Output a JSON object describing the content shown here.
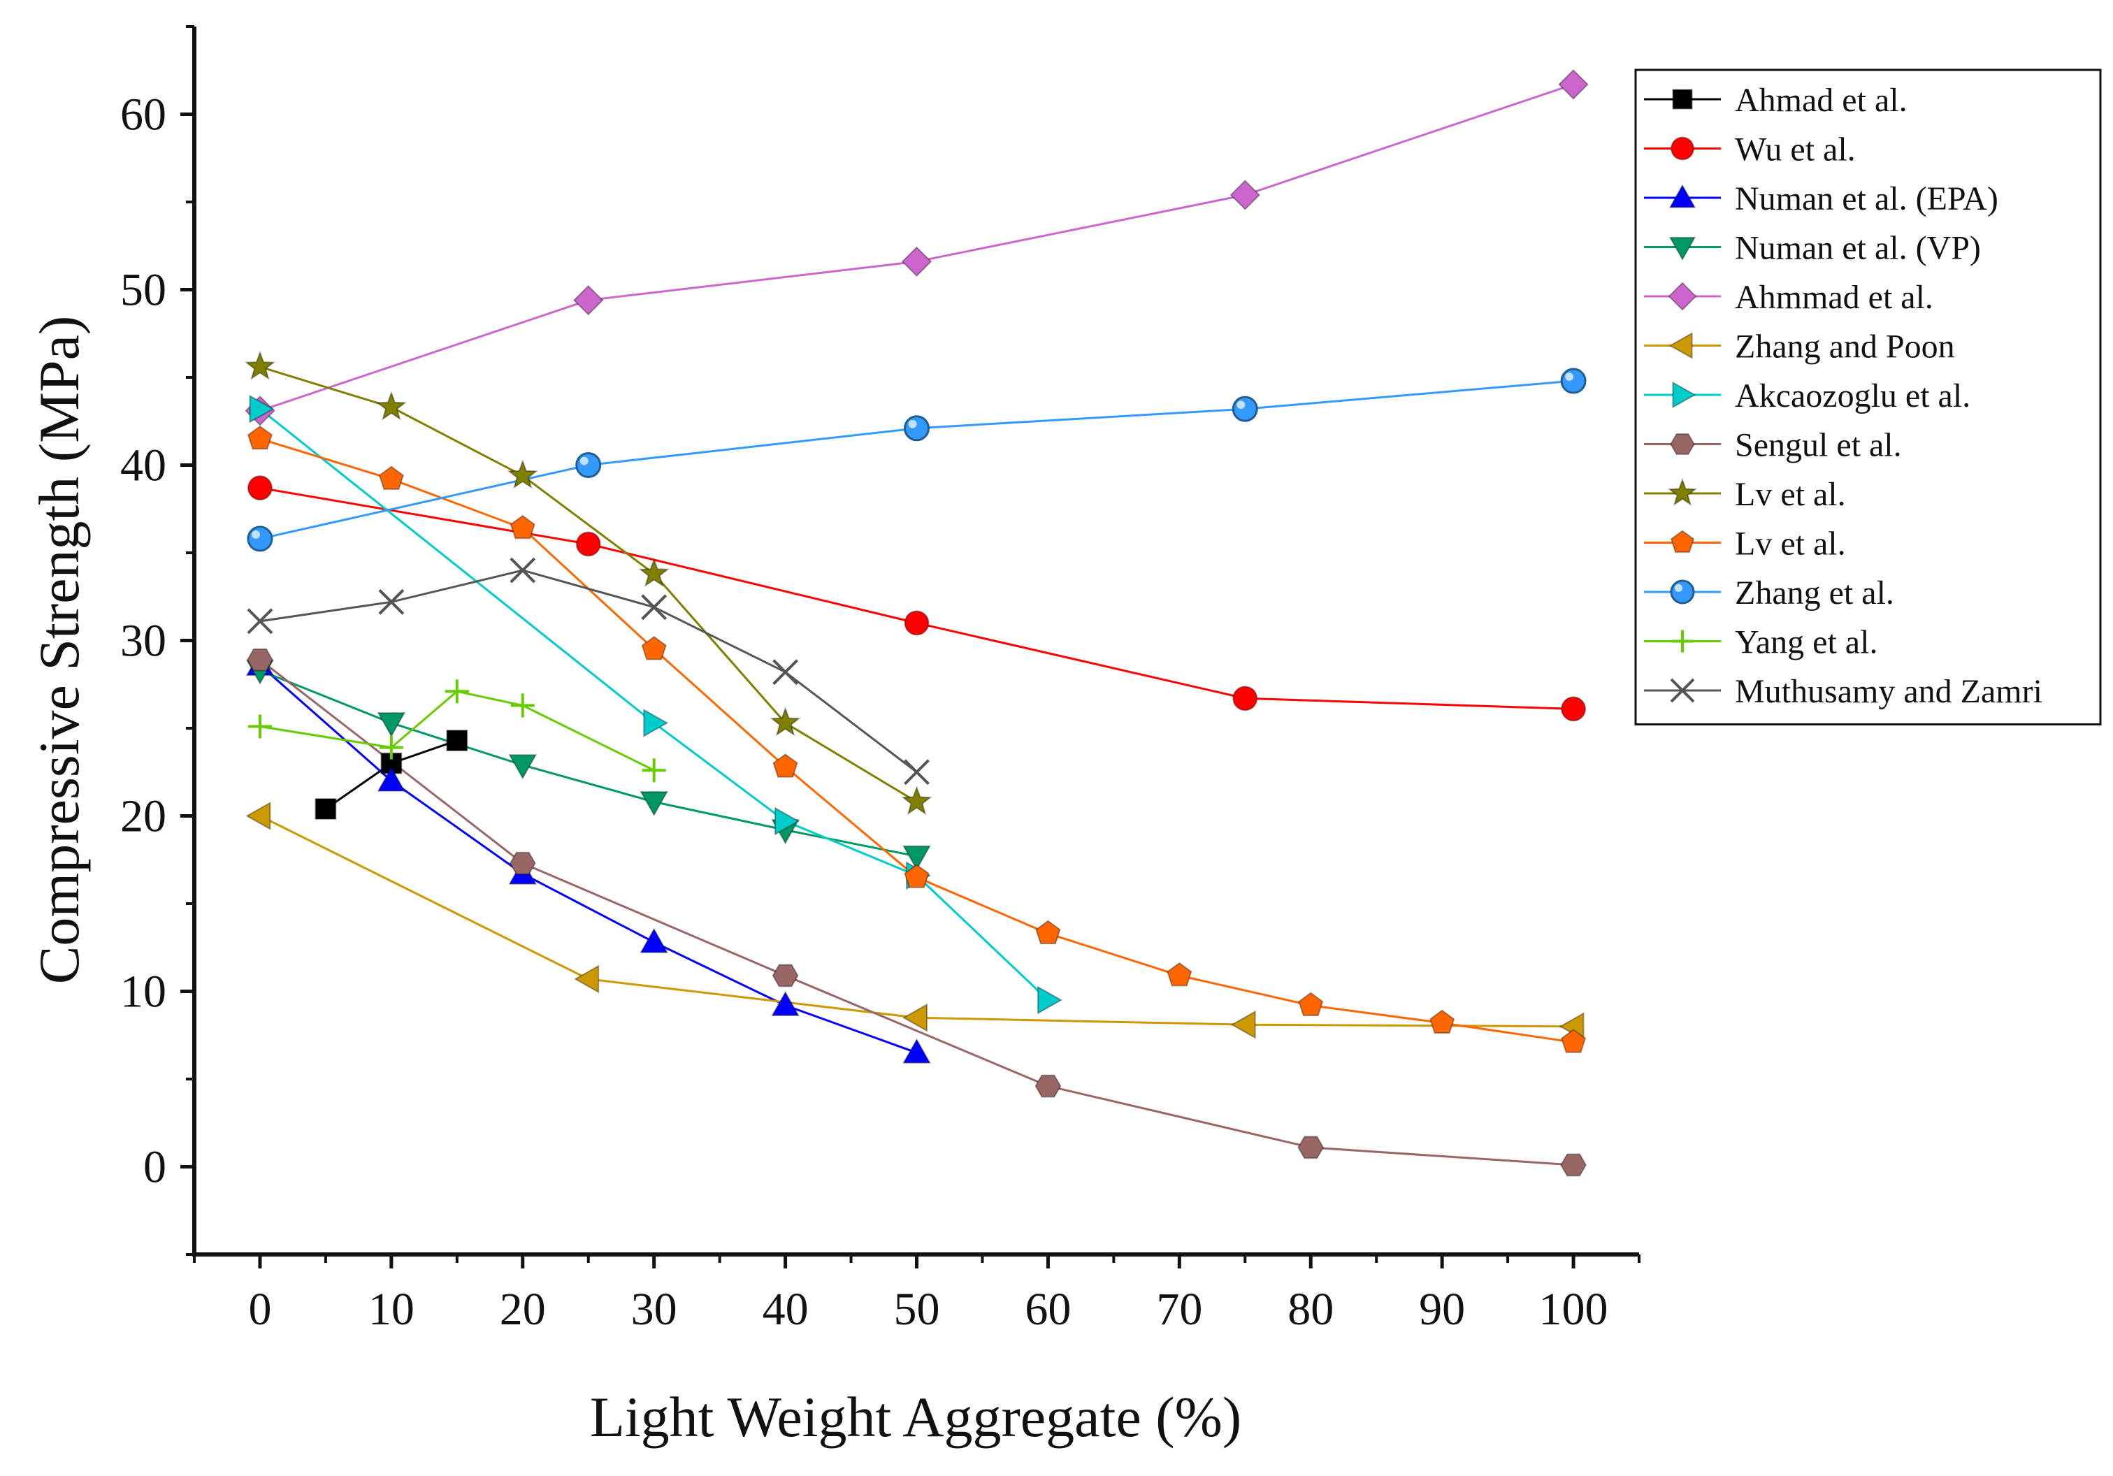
{
  "chart_data": {
    "type": "line",
    "title": "",
    "xlabel": "Light Weight Aggregate (%)",
    "ylabel": "Compressive Strength (MPa)",
    "xlim": [
      -5,
      105
    ],
    "ylim": [
      -5,
      65
    ],
    "x_ticks": [
      0,
      10,
      20,
      30,
      40,
      50,
      60,
      70,
      80,
      90,
      100
    ],
    "y_ticks": [
      0,
      10,
      20,
      30,
      40,
      50,
      60
    ],
    "grid": false,
    "legend_position": "top-right",
    "series": [
      {
        "name": "Ahmad et al.",
        "marker": "square",
        "color": "#000000",
        "points": [
          [
            5,
            20.4
          ],
          [
            10,
            23
          ],
          [
            15,
            24.3
          ]
        ]
      },
      {
        "name": "Wu et al.",
        "marker": "circle",
        "color": "#ff0000",
        "points": [
          [
            0,
            38.7
          ],
          [
            25,
            35.5
          ],
          [
            50,
            31
          ],
          [
            75,
            26.7
          ],
          [
            100,
            26.1
          ]
        ]
      },
      {
        "name": "Numan et al. (EPA)",
        "marker": "triangle-up",
        "color": "#0000ff",
        "points": [
          [
            0,
            28.6
          ],
          [
            10,
            22
          ],
          [
            20,
            16.7
          ],
          [
            30,
            12.8
          ],
          [
            40,
            9.2
          ],
          [
            50,
            6.5
          ]
        ]
      },
      {
        "name": "Numan et al. (VP)",
        "marker": "triangle-down",
        "color": "#009966",
        "points": [
          [
            0,
            28.3
          ],
          [
            10,
            25.3
          ],
          [
            20,
            22.9
          ],
          [
            30,
            20.8
          ],
          [
            40,
            19.2
          ],
          [
            50,
            17.7
          ]
        ]
      },
      {
        "name": "Ahmmad et al.",
        "marker": "diamond",
        "color": "#cc66cc",
        "points": [
          [
            0,
            43.1
          ],
          [
            25,
            49.4
          ],
          [
            50,
            51.6
          ],
          [
            75,
            55.4
          ],
          [
            100,
            61.7
          ]
        ]
      },
      {
        "name": "Zhang  and Poon",
        "marker": "triangle-left",
        "color": "#cc9900",
        "points": [
          [
            0,
            20
          ],
          [
            25,
            10.7
          ],
          [
            50,
            8.5
          ],
          [
            75,
            8.1
          ],
          [
            100,
            8
          ]
        ]
      },
      {
        "name": "Akcaozoglu et al.",
        "marker": "triangle-right",
        "color": "#00cccc",
        "points": [
          [
            0,
            43.2
          ],
          [
            30,
            25.3
          ],
          [
            40,
            19.7
          ],
          [
            50,
            16.6
          ],
          [
            60,
            9.5
          ]
        ]
      },
      {
        "name": "Sengul et al.",
        "marker": "hexagon",
        "color": "#996666",
        "points": [
          [
            0,
            28.9
          ],
          [
            20,
            17.3
          ],
          [
            40,
            10.9
          ],
          [
            60,
            4.6
          ],
          [
            80,
            1.1
          ],
          [
            100,
            0.1
          ]
        ]
      },
      {
        "name": "Lv et al.",
        "marker": "star",
        "color": "#808000",
        "points": [
          [
            0,
            45.6
          ],
          [
            10,
            43.3
          ],
          [
            20,
            39.4
          ],
          [
            30,
            33.8
          ],
          [
            40,
            25.3
          ],
          [
            50,
            20.8
          ]
        ]
      },
      {
        "name": "Lv et al.",
        "marker": "pentagon",
        "color": "#ff6600",
        "points": [
          [
            0,
            41.5
          ],
          [
            10,
            39.2
          ],
          [
            20,
            36.4
          ],
          [
            30,
            29.5
          ],
          [
            40,
            22.8
          ],
          [
            50,
            16.5
          ],
          [
            60,
            13.3
          ],
          [
            70,
            10.9
          ],
          [
            80,
            9.2
          ],
          [
            90,
            8.2
          ],
          [
            100,
            7.1
          ]
        ]
      },
      {
        "name": "Zhang et al.",
        "marker": "sphere",
        "color": "#3399ff",
        "points": [
          [
            0,
            35.8
          ],
          [
            25,
            40
          ],
          [
            50,
            42.1
          ],
          [
            75,
            43.2
          ],
          [
            100,
            44.8
          ]
        ]
      },
      {
        "name": "Yang et al.",
        "marker": "plus",
        "color": "#66cc00",
        "points": [
          [
            0,
            25.1
          ],
          [
            10,
            23.9
          ],
          [
            15,
            27.1
          ],
          [
            20,
            26.3
          ],
          [
            30,
            22.6
          ]
        ]
      },
      {
        "name": "Muthusamy  and Zamri",
        "marker": "cross",
        "color": "#555555",
        "points": [
          [
            0,
            31.1
          ],
          [
            10,
            32.2
          ],
          [
            20,
            34
          ],
          [
            30,
            31.9
          ],
          [
            40,
            28.2
          ],
          [
            50,
            22.5
          ]
        ]
      }
    ]
  }
}
